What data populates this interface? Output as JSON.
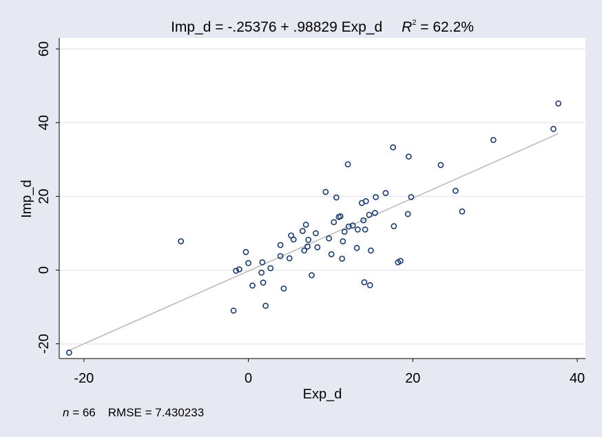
{
  "chart_data": {
    "type": "scatter",
    "title": {
      "equation": "Imp_d = -.25376 + .98829 Exp_d",
      "r2_symbol": "R",
      "r2_exponent": "2",
      "r2_value": " = 62.2%"
    },
    "xlabel": "Exp_d",
    "ylabel": "Imp_d",
    "xlim": [
      -23,
      41
    ],
    "ylim": [
      -24,
      63
    ],
    "x_ticks": [
      -20,
      0,
      20,
      40
    ],
    "x_tick_labels": [
      "-20",
      "0",
      "20",
      "40"
    ],
    "y_ticks": [
      -20,
      0,
      20,
      40,
      60
    ],
    "y_tick_labels": [
      "-20",
      "0",
      "20",
      "40",
      "60"
    ],
    "grid": "horizontal",
    "fit_line": {
      "intercept": -0.25376,
      "slope": 0.98829,
      "x_range": [
        -21.8,
        37.7
      ]
    },
    "footer": {
      "n_label": "n",
      "n_value": " = 66",
      "rmse": "RMSE =  7.430233"
    },
    "colors": {
      "background": "#e6e9f2",
      "plot_area": "#ffffff",
      "grid": "#e6e9f2",
      "marker": "#1a3a6b",
      "fit_line": "#b8b8b8"
    },
    "points": [
      [
        -21.8,
        -22.4
      ],
      [
        -8.2,
        7.8
      ],
      [
        -1.8,
        -11
      ],
      [
        -1.5,
        -0.2
      ],
      [
        -1.1,
        0.2
      ],
      [
        -0.3,
        4.9
      ],
      [
        0,
        1.9
      ],
      [
        0.5,
        -4.2
      ],
      [
        1.6,
        -0.7
      ],
      [
        1.7,
        2.1
      ],
      [
        1.8,
        -3.4
      ],
      [
        2.1,
        -9.7
      ],
      [
        2.7,
        0.5
      ],
      [
        3.9,
        3.8
      ],
      [
        3.9,
        6.8
      ],
      [
        4.3,
        -5
      ],
      [
        5,
        3.2
      ],
      [
        5.2,
        9.4
      ],
      [
        5.5,
        8.3
      ],
      [
        6.6,
        10.6
      ],
      [
        6.8,
        5.3
      ],
      [
        7,
        12.3
      ],
      [
        7.2,
        6.4
      ],
      [
        7.3,
        8.2
      ],
      [
        7.7,
        -1.4
      ],
      [
        8.2,
        10
      ],
      [
        8.4,
        6.2
      ],
      [
        9.4,
        21.2
      ],
      [
        9.8,
        8.6
      ],
      [
        10.1,
        4.3
      ],
      [
        10.4,
        13
      ],
      [
        10.7,
        19.7
      ],
      [
        11,
        14.4
      ],
      [
        11.2,
        14.6
      ],
      [
        11.4,
        3.1
      ],
      [
        11.5,
        7.8
      ],
      [
        11.7,
        10.4
      ],
      [
        12.1,
        28.7
      ],
      [
        12.2,
        11.8
      ],
      [
        12.7,
        12.1
      ],
      [
        13.2,
        6
      ],
      [
        13.3,
        11
      ],
      [
        13.8,
        18.2
      ],
      [
        14,
        13.5
      ],
      [
        14.1,
        -3.3
      ],
      [
        14.2,
        11
      ],
      [
        14.3,
        18.7
      ],
      [
        14.7,
        15
      ],
      [
        14.8,
        -4.1
      ],
      [
        14.9,
        5.3
      ],
      [
        15.4,
        15.5
      ],
      [
        15.5,
        19.8
      ],
      [
        16.7,
        20.9
      ],
      [
        17.6,
        33.3
      ],
      [
        17.7,
        11.9
      ],
      [
        18.2,
        2.1
      ],
      [
        18.5,
        2.5
      ],
      [
        19.4,
        15.2
      ],
      [
        19.5,
        30.8
      ],
      [
        19.8,
        19.8
      ],
      [
        23.4,
        28.5
      ],
      [
        25.2,
        21.5
      ],
      [
        26,
        15.9
      ],
      [
        29.8,
        35.3
      ],
      [
        37.1,
        38.3
      ],
      [
        37.7,
        45.2
      ]
    ]
  }
}
